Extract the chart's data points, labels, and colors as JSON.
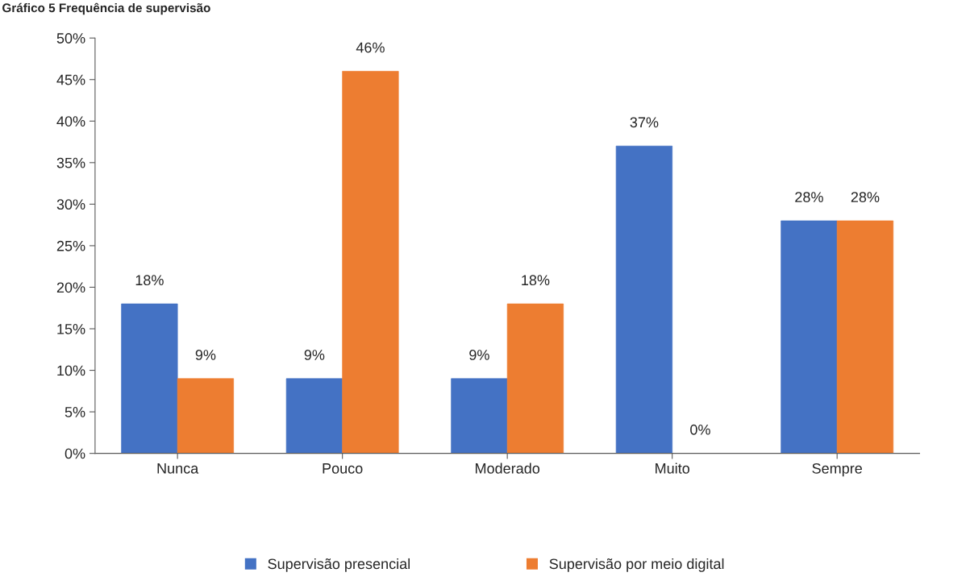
{
  "chart_data": {
    "type": "bar",
    "title": "Gráfico 5 Frequência de supervisão",
    "categories": [
      "Nunca",
      "Pouco",
      "Moderado",
      "Muito",
      "Sempre"
    ],
    "series": [
      {
        "name": "Supervisão presencial",
        "color": "#4472c4",
        "values": [
          18,
          9,
          9,
          37,
          28
        ],
        "value_labels": [
          "18%",
          "9%",
          "9%",
          "37%",
          "28%"
        ]
      },
      {
        "name": "Supervisão por meio digital",
        "color": "#ed7d31",
        "values": [
          9,
          46,
          18,
          0,
          28
        ],
        "value_labels": [
          "9%",
          "46%",
          "18%",
          "0%",
          "28%"
        ]
      }
    ],
    "ylim": [
      0,
      50
    ],
    "yticks": [
      {
        "value": 0,
        "label": "0%"
      },
      {
        "value": 5,
        "label": "5%"
      },
      {
        "value": 10,
        "label": "10%"
      },
      {
        "value": 15,
        "label": "15%"
      },
      {
        "value": 20,
        "label": "20%"
      },
      {
        "value": 25,
        "label": "25%"
      },
      {
        "value": 30,
        "label": "30%"
      },
      {
        "value": 35,
        "label": "35%"
      },
      {
        "value": 40,
        "label": "40%"
      },
      {
        "value": 45,
        "label": "45%"
      },
      {
        "value": 50,
        "label": "50%"
      }
    ],
    "grid": false,
    "legend": "bottom"
  }
}
